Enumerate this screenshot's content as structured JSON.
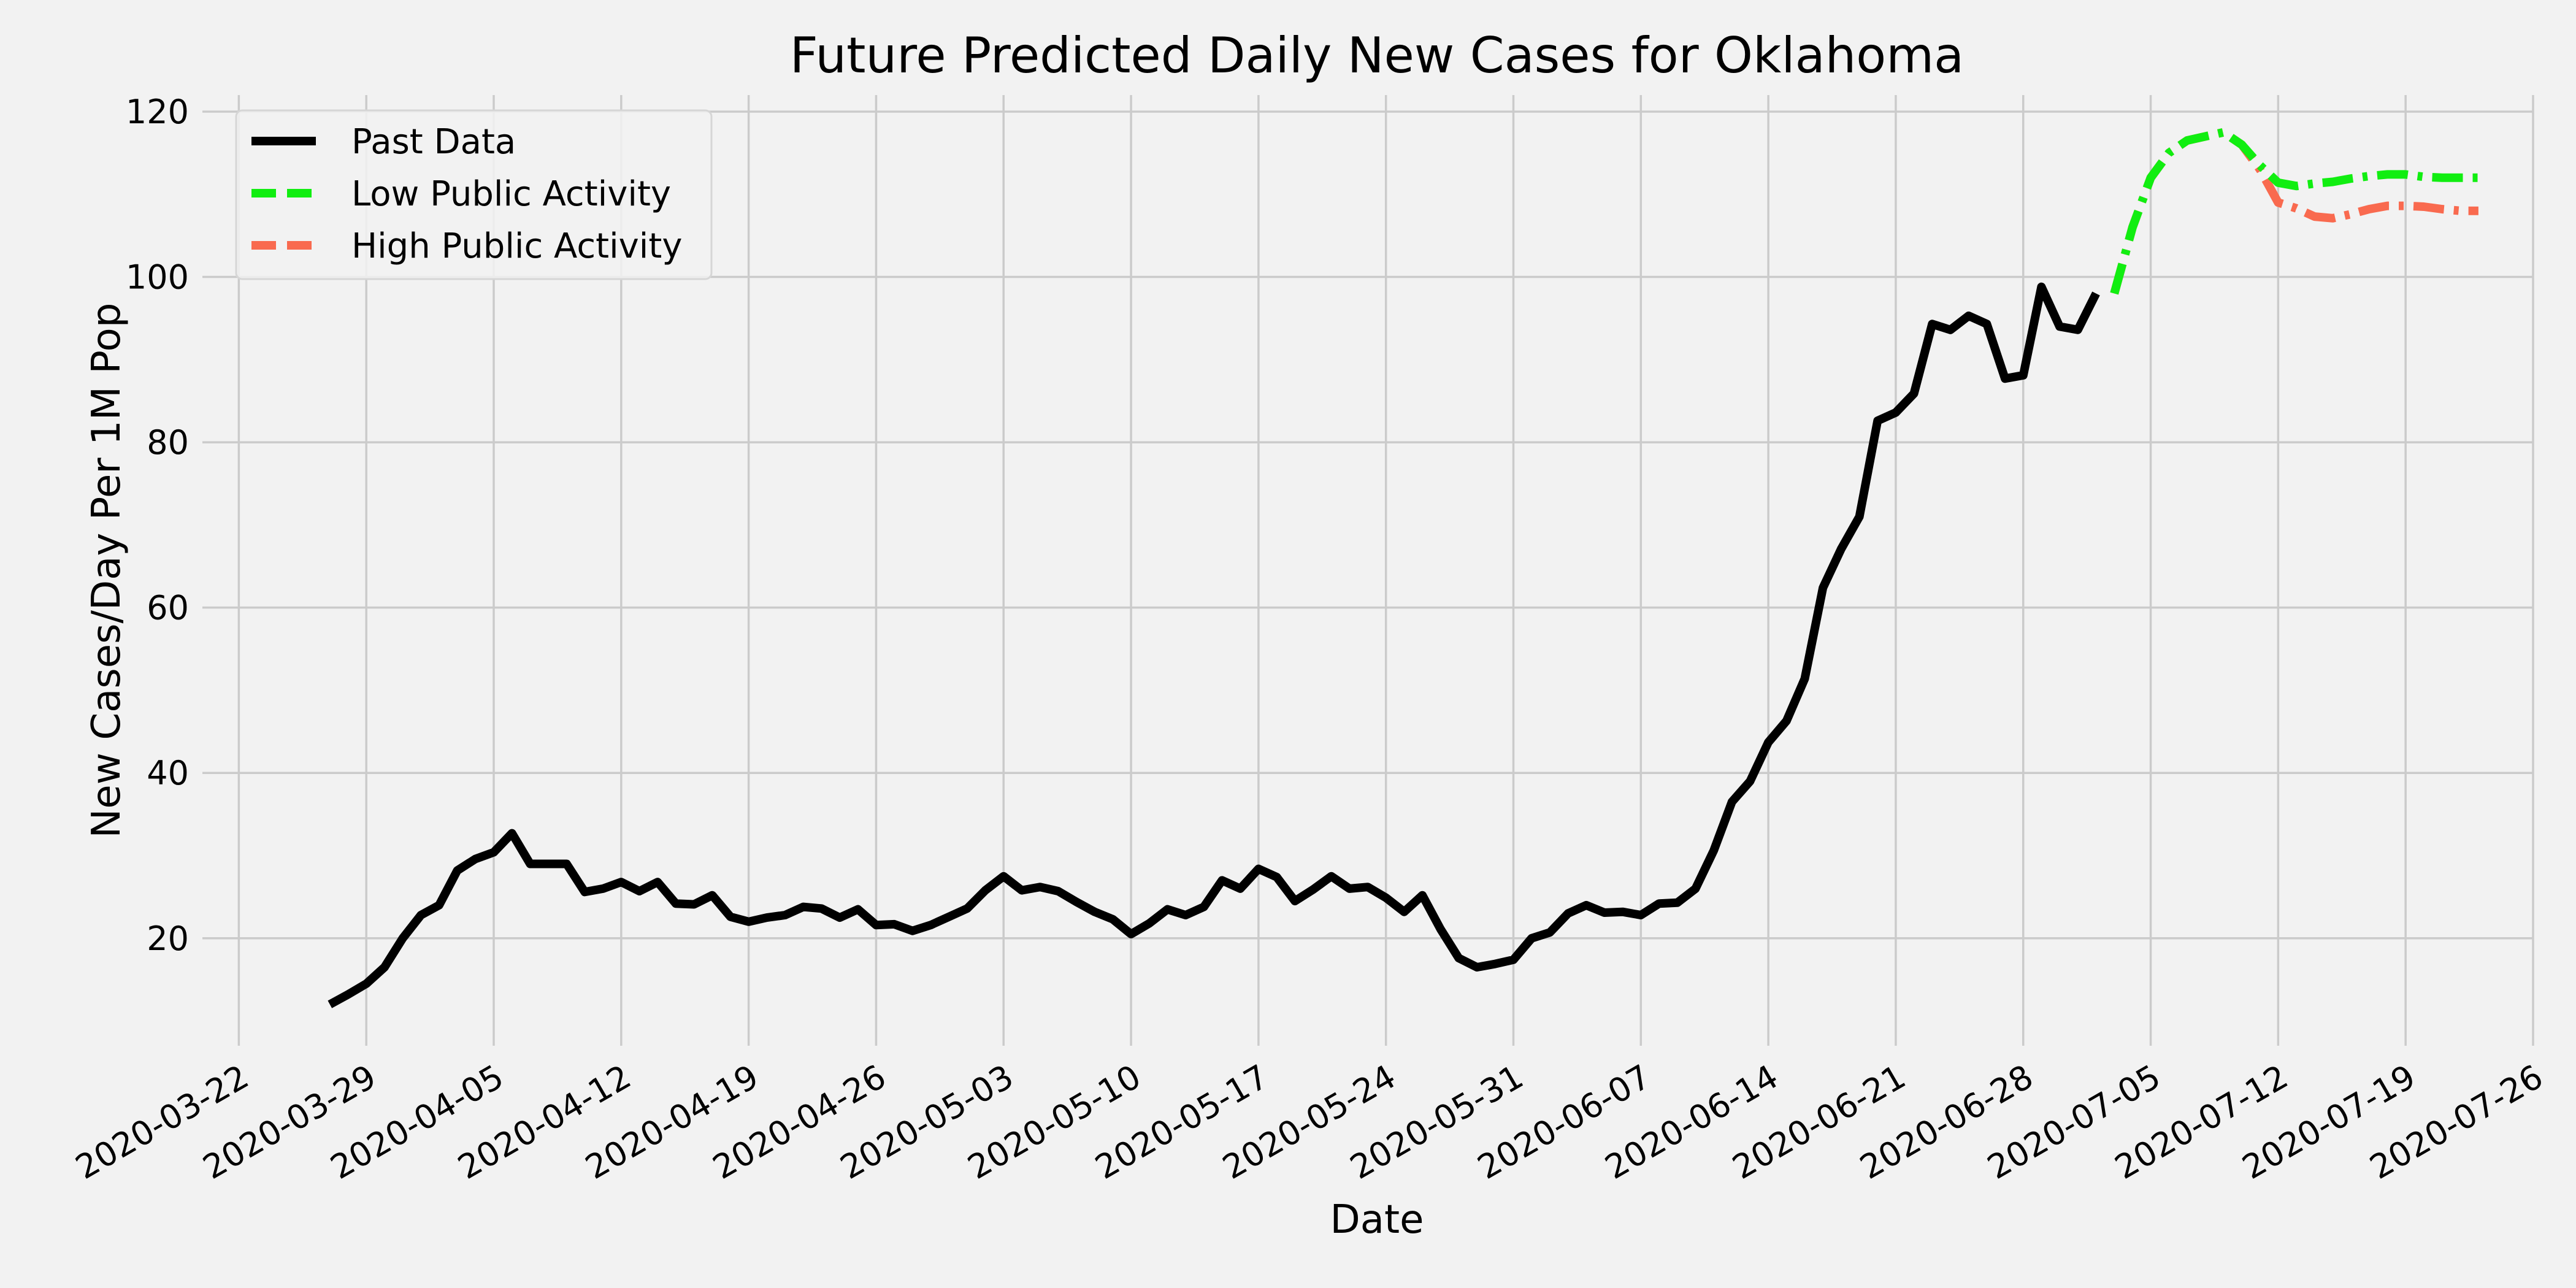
{
  "chart_data": {
    "type": "line",
    "title": "Future Predicted Daily New Cases for Oklahoma",
    "xlabel": "Date",
    "ylabel": "New Cases/Day Per 1M Pop",
    "xlim": [
      "2020-03-20",
      "2020-07-26"
    ],
    "ylim": [
      7,
      122
    ],
    "grid": true,
    "legend_position": "top-left",
    "x_ticks": [
      "2020-03-22",
      "2020-03-29",
      "2020-04-05",
      "2020-04-12",
      "2020-04-19",
      "2020-04-26",
      "2020-05-03",
      "2020-05-10",
      "2020-05-17",
      "2020-05-24",
      "2020-05-31",
      "2020-06-07",
      "2020-06-14",
      "2020-06-21",
      "2020-06-28",
      "2020-07-05",
      "2020-07-12",
      "2020-07-19",
      "2020-07-26"
    ],
    "y_ticks": [
      20,
      40,
      60,
      80,
      100,
      120
    ],
    "series": [
      {
        "name": "Past Data",
        "color": "#000000",
        "dash": "solid",
        "start_date": "2020-03-27",
        "values": [
          12,
          13.2,
          14.5,
          16.5,
          20,
          22.8,
          24,
          28.2,
          29.6,
          30.4,
          32.7,
          29,
          29,
          29,
          25.6,
          26,
          26.8,
          25.7,
          26.8,
          24.2,
          24.1,
          25.2,
          22.6,
          22,
          22.5,
          22.8,
          23.8,
          23.6,
          22.5,
          23.5,
          21.6,
          21.7,
          20.9,
          21.6,
          22.6,
          23.6,
          25.8,
          27.5,
          25.8,
          26.2,
          25.7,
          24.4,
          23.2,
          22.3,
          20.5,
          21.8,
          23.5,
          22.8,
          23.8,
          27,
          26,
          28.4,
          27.4,
          24.5,
          25.9,
          27.5,
          26,
          26.2,
          24.9,
          23.2,
          25.2,
          21.1,
          17.6,
          16.5,
          16.9,
          17.4,
          20,
          20.7,
          23,
          24,
          23.1,
          23.2,
          22.8,
          24.2,
          24.3,
          26,
          30.6,
          36.5,
          39,
          43.7,
          46.3,
          51.4,
          62.4,
          67.1,
          71,
          82.6,
          83.6,
          85.9,
          94.3,
          93.6,
          95.3,
          94.3,
          87.7,
          88.1,
          98.8,
          94,
          93.6,
          98
        ]
      },
      {
        "name": "Low Public Activity",
        "color": "#11ee11",
        "dash": "dash-dot",
        "start_date": "2020-07-03",
        "values": [
          98,
          106,
          112,
          115,
          116.5,
          117,
          117.5,
          116,
          113.5,
          111.4,
          111,
          111.3,
          111.5,
          111.9,
          112.2,
          112.4,
          112.4,
          112.1,
          112,
          112,
          112
        ]
      },
      {
        "name": "High Public Activity",
        "color": "#f96a4f",
        "dash": "dash-dot",
        "start_date": "2020-07-03",
        "values": [
          98,
          106,
          112,
          115,
          116.5,
          117,
          117.5,
          116,
          113,
          109,
          108.3,
          107.3,
          107.1,
          107.6,
          108.2,
          108.6,
          108.6,
          108.5,
          108.2,
          108,
          108
        ]
      }
    ]
  }
}
